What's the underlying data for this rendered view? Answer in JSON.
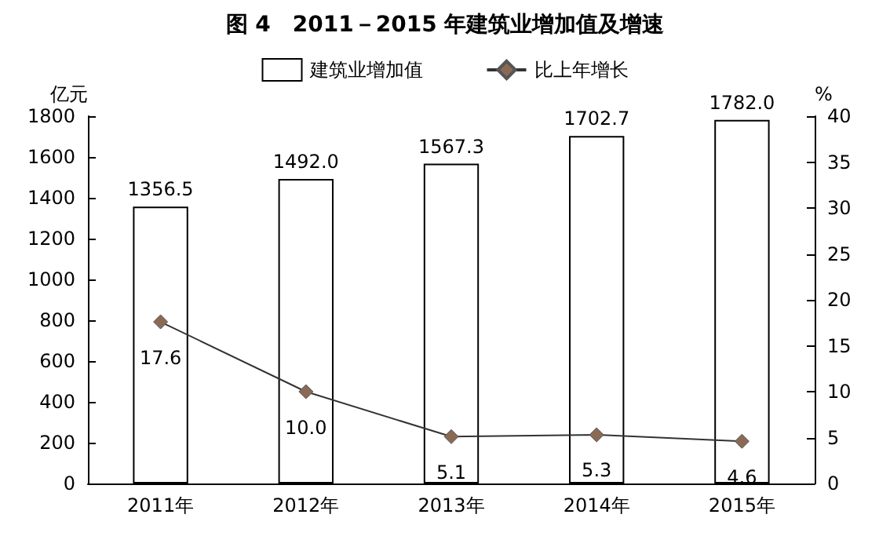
{
  "chart_data": {
    "type": "bar",
    "title": "图 4　2011－2015 年建筑业增加值及增速",
    "ylabel": "亿元",
    "y2label": "%",
    "categories": [
      "2011年",
      "2012年",
      "2013年",
      "2014年",
      "2015年"
    ],
    "series": [
      {
        "name": "建筑业增加值",
        "color": "#ffffff",
        "values": [
          1356.5,
          1492.0,
          1567.3,
          1702.7,
          1782.0
        ],
        "value_labels": [
          "1356.5",
          "1492.0",
          "1567.3",
          "1702.7",
          "1782.0"
        ]
      },
      {
        "name": "比上年增长",
        "type": "line",
        "axis": "y2",
        "color": "#8b6a55",
        "marker": "diamond",
        "values": [
          17.6,
          10.0,
          5.1,
          5.3,
          4.6
        ],
        "value_labels": [
          "17.6",
          "10.0",
          "5.1",
          "5.3",
          "4.6"
        ]
      }
    ],
    "ylim": [
      0,
      1800
    ],
    "yticks": [
      0,
      200,
      400,
      600,
      800,
      1000,
      1200,
      1400,
      1600,
      1800
    ],
    "y2lim": [
      0,
      40
    ],
    "y2ticks": [
      0,
      5,
      10,
      15,
      20,
      25,
      30,
      35,
      40
    ],
    "legend": "top",
    "grid": false
  }
}
